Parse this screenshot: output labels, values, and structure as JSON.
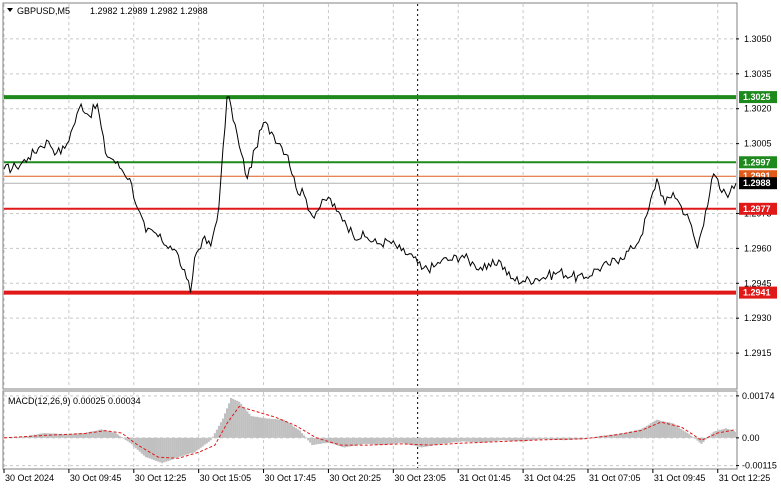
{
  "info": {
    "symbol": "GBPUSD,M5",
    "ohlc": "1.2982 1.2989 1.2982 1.2988"
  },
  "macd_info": "MACD(12,26,9) 0.00025 0.00034",
  "chart_data": [
    {
      "type": "line",
      "name": "price",
      "ylim": [
        1.29,
        1.3065
      ],
      "y_ticks": [
        "1.3050",
        "1.3035",
        "1.3020",
        "1.3005",
        "1.2975",
        "1.2960",
        "1.2945",
        "1.2930",
        "1.2915"
      ],
      "y_tick_values": [
        1.305,
        1.3035,
        1.302,
        1.3005,
        1.2975,
        1.296,
        1.2945,
        1.293,
        1.2915
      ],
      "x_ticks": [
        "30 Oct 2024",
        "30 Oct 09:45",
        "30 Oct 12:25",
        "30 Oct 15:05",
        "30 Oct 17:45",
        "30 Oct 20:25",
        "30 Oct 23:05",
        "31 Oct 01:45",
        "31 Oct 04:25",
        "31 Oct 07:05",
        "31 Oct 09:45",
        "31 Oct 12:25"
      ],
      "x_tick_index": [
        0,
        32,
        64,
        96,
        128,
        160,
        192,
        224,
        256,
        288,
        320,
        352
      ],
      "period_separator_index": 204,
      "points_count": 362,
      "close_anchors": [
        [
          0,
          1.2994
        ],
        [
          6,
          1.2995
        ],
        [
          12,
          1.2999
        ],
        [
          18,
          1.3004
        ],
        [
          22,
          1.3006
        ],
        [
          26,
          1.3001
        ],
        [
          30,
          1.3003
        ],
        [
          34,
          1.3012
        ],
        [
          38,
          1.3022
        ],
        [
          42,
          1.3017
        ],
        [
          46,
          1.3022
        ],
        [
          50,
          1.3001
        ],
        [
          54,
          1.2998
        ],
        [
          58,
          1.2994
        ],
        [
          62,
          1.299
        ],
        [
          66,
          1.2977
        ],
        [
          70,
          1.2967
        ],
        [
          74,
          1.2967
        ],
        [
          78,
          1.2963
        ],
        [
          82,
          1.2961
        ],
        [
          86,
          1.2957
        ],
        [
          88,
          1.2951
        ],
        [
          90,
          1.2947
        ],
        [
          92,
          1.2941
        ],
        [
          94,
          1.2956
        ],
        [
          98,
          1.2964
        ],
        [
          102,
          1.2961
        ],
        [
          106,
          1.2978
        ],
        [
          110,
          1.3025
        ],
        [
          112,
          1.3021
        ],
        [
          116,
          1.3004
        ],
        [
          120,
          1.299
        ],
        [
          124,
          1.3003
        ],
        [
          128,
          1.3014
        ],
        [
          132,
          1.301
        ],
        [
          136,
          1.3005
        ],
        [
          140,
          1.3
        ],
        [
          144,
          1.2986
        ],
        [
          148,
          1.2983
        ],
        [
          152,
          1.2974
        ],
        [
          156,
          1.2978
        ],
        [
          160,
          1.2982
        ],
        [
          164,
          1.2976
        ],
        [
          168,
          1.2972
        ],
        [
          172,
          1.2966
        ],
        [
          178,
          1.2965
        ],
        [
          184,
          1.2962
        ],
        [
          190,
          1.2963
        ],
        [
          196,
          1.2959
        ],
        [
          202,
          1.2956
        ],
        [
          206,
          1.2951
        ],
        [
          212,
          1.2952
        ],
        [
          216,
          1.2955
        ],
        [
          220,
          1.2955
        ],
        [
          226,
          1.2957
        ],
        [
          232,
          1.2953
        ],
        [
          238,
          1.2951
        ],
        [
          244,
          1.2955
        ],
        [
          250,
          1.2947
        ],
        [
          256,
          1.2946
        ],
        [
          262,
          1.2947
        ],
        [
          268,
          1.2948
        ],
        [
          274,
          1.295
        ],
        [
          280,
          1.2948
        ],
        [
          286,
          1.2947
        ],
        [
          292,
          1.2951
        ],
        [
          298,
          1.2953
        ],
        [
          304,
          1.2956
        ],
        [
          310,
          1.296
        ],
        [
          314,
          1.2965
        ],
        [
          318,
          1.2977
        ],
        [
          322,
          1.299
        ],
        [
          326,
          1.2979
        ],
        [
          330,
          1.2984
        ],
        [
          334,
          1.2978
        ],
        [
          338,
          1.2972
        ],
        [
          342,
          1.296
        ],
        [
          346,
          1.2976
        ],
        [
          350,
          1.2992
        ],
        [
          354,
          1.2984
        ],
        [
          358,
          1.2984
        ],
        [
          361,
          1.2988
        ]
      ],
      "levels": [
        {
          "value": 1.3025,
          "label": "1.3025",
          "color": "#1e8a1e",
          "width": "thick"
        },
        {
          "value": 1.2997,
          "label": "1.2997",
          "color": "#1e8a1e",
          "width": "medium"
        },
        {
          "value": 1.2991,
          "label": "1.2991",
          "color": "#e05a1a",
          "width": "thin"
        },
        {
          "value": 1.2977,
          "label": "1.2977",
          "color": "#e01818",
          "width": "medium"
        },
        {
          "value": 1.2941,
          "label": "1.2941",
          "color": "#e01818",
          "width": "thick"
        }
      ],
      "current_price": {
        "value": 1.2988,
        "label": "1.2988",
        "color": "#000000"
      },
      "colors": {
        "line": "#000000",
        "grid": "#c8c8c8",
        "background": "#ffffff"
      }
    },
    {
      "type": "bar",
      "name": "MACD(12,26,9)",
      "ylim": [
        -0.00125,
        0.0019
      ],
      "y_ticks": [
        "0.00174",
        "0.00",
        "-0.00115"
      ],
      "y_tick_values": [
        0.00174,
        0.0,
        -0.00115
      ],
      "histogram_anchors": [
        [
          0,
          0.0
        ],
        [
          10,
          5e-05
        ],
        [
          20,
          0.0002
        ],
        [
          30,
          0.00015
        ],
        [
          40,
          0.0002
        ],
        [
          48,
          0.00035
        ],
        [
          55,
          0.0002
        ],
        [
          62,
          -0.0002
        ],
        [
          70,
          -0.0008
        ],
        [
          78,
          -0.00105
        ],
        [
          86,
          -0.0008
        ],
        [
          94,
          -0.0006
        ],
        [
          102,
          -0.0001
        ],
        [
          108,
          0.0008
        ],
        [
          112,
          0.00165
        ],
        [
          116,
          0.0015
        ],
        [
          122,
          0.0009
        ],
        [
          130,
          0.0008
        ],
        [
          138,
          0.00075
        ],
        [
          146,
          0.0003
        ],
        [
          152,
          -0.0003
        ],
        [
          160,
          -0.0002
        ],
        [
          168,
          -0.0004
        ],
        [
          178,
          -0.00025
        ],
        [
          188,
          -0.0003
        ],
        [
          196,
          -0.0002
        ],
        [
          206,
          -0.0004
        ],
        [
          216,
          -0.00025
        ],
        [
          226,
          -0.00015
        ],
        [
          236,
          -0.0002
        ],
        [
          246,
          -0.0001
        ],
        [
          256,
          -0.00015
        ],
        [
          266,
          -5e-05
        ],
        [
          276,
          -0.0001
        ],
        [
          286,
          -5e-05
        ],
        [
          296,
          0.0001
        ],
        [
          306,
          0.0002
        ],
        [
          314,
          0.00035
        ],
        [
          322,
          0.00075
        ],
        [
          330,
          0.0006
        ],
        [
          338,
          0.00015
        ],
        [
          344,
          -0.00025
        ],
        [
          350,
          0.00025
        ],
        [
          356,
          0.0004
        ],
        [
          361,
          0.00025
        ]
      ],
      "signal_anchors": [
        [
          0,
          0.0
        ],
        [
          20,
          0.0001
        ],
        [
          40,
          0.00018
        ],
        [
          50,
          0.0003
        ],
        [
          58,
          0.0002
        ],
        [
          66,
          -0.0003
        ],
        [
          76,
          -0.0008
        ],
        [
          86,
          -0.00085
        ],
        [
          96,
          -0.0006
        ],
        [
          104,
          -0.0003
        ],
        [
          110,
          0.0006
        ],
        [
          116,
          0.0013
        ],
        [
          124,
          0.0011
        ],
        [
          134,
          0.00085
        ],
        [
          144,
          0.0005
        ],
        [
          154,
          0.0
        ],
        [
          166,
          -0.0003
        ],
        [
          180,
          -0.0003
        ],
        [
          196,
          -0.00025
        ],
        [
          210,
          -0.0003
        ],
        [
          226,
          -0.00022
        ],
        [
          246,
          -0.00015
        ],
        [
          266,
          -8e-05
        ],
        [
          286,
          -4e-05
        ],
        [
          300,
          0.0001
        ],
        [
          314,
          0.0003
        ],
        [
          324,
          0.00065
        ],
        [
          334,
          0.00045
        ],
        [
          344,
          -0.0001
        ],
        [
          352,
          0.0002
        ],
        [
          361,
          0.00034
        ]
      ],
      "colors": {
        "histogram": "#c0c0c0",
        "signal": "#e01818"
      }
    }
  ]
}
